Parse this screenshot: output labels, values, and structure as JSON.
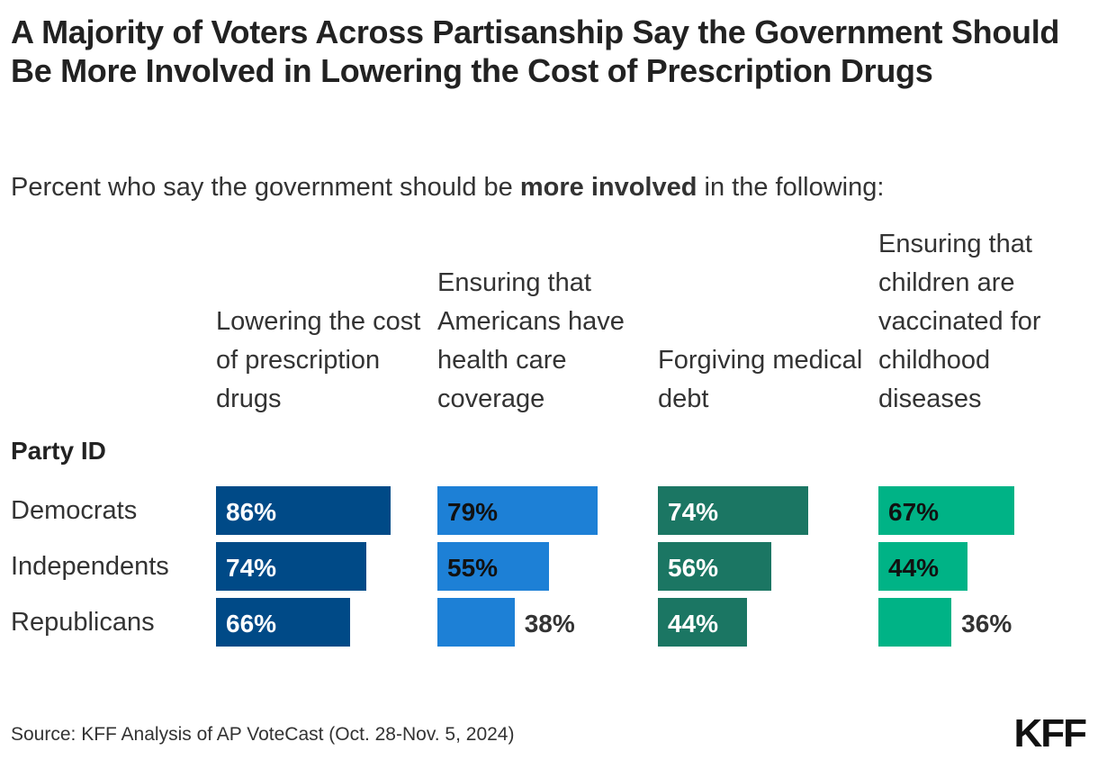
{
  "chart_data": {
    "type": "bar",
    "orientation": "horizontal",
    "title": "A Majority of Voters Across Partisanship Say the Government Should Be More Involved in Lowering the Cost of Prescription Drugs",
    "subtitle_pre": "Percent who say the government should be ",
    "subtitle_bold": "more involved",
    "subtitle_post": " in the following:",
    "row_group_label": "Party ID",
    "categories": [
      "Democrats",
      "Independents",
      "Republicans"
    ],
    "panels": [
      {
        "name": "Lowering the cost of prescription drugs",
        "color": "#004A87",
        "label_color": "#ffffff",
        "values": [
          86,
          74,
          66
        ]
      },
      {
        "name": "Ensuring that Americans have health care coverage",
        "color": "#1D80D6",
        "label_color": "#111111",
        "values": [
          79,
          55,
          38
        ]
      },
      {
        "name": "Forgiving medical debt",
        "color": "#1B7663",
        "label_color": "#ffffff",
        "values": [
          74,
          56,
          44
        ]
      },
      {
        "name": "Ensuring that children are vaccinated for childhood diseases",
        "color": "#00B386",
        "label_color": "#111111",
        "values": [
          67,
          44,
          36
        ]
      }
    ],
    "value_suffix": "%",
    "xlim": [
      0,
      100
    ],
    "grid": false,
    "legend": "none"
  },
  "source": "Source: KFF Analysis of AP VoteCast (Oct. 28-Nov. 5, 2024)",
  "logo": "KFF"
}
